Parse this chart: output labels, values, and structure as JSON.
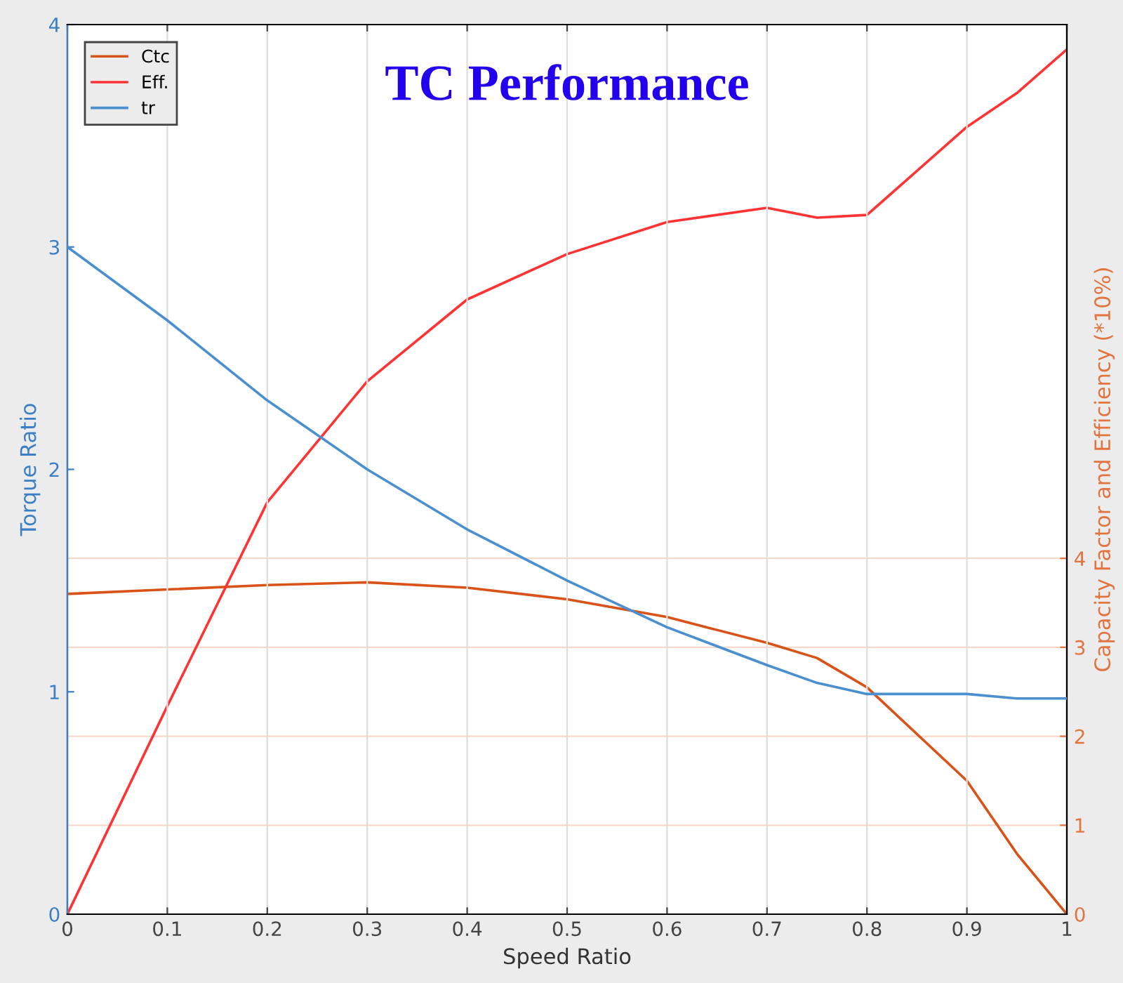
{
  "chart_data": {
    "type": "line",
    "title": "TC Performance",
    "xlabel": "Speed Ratio",
    "ylabel": "Torque Ratio",
    "y2label": "Capacity Factor and Efficiency (*10%)",
    "x": [
      0,
      0.1,
      0.2,
      0.3,
      0.4,
      0.5,
      0.6,
      0.7,
      0.75,
      0.8,
      0.9,
      0.95,
      1
    ],
    "series": [
      {
        "name": "Ctc",
        "color": "#d95319",
        "axis": "y2",
        "values": [
          3.6,
          3.65,
          3.7,
          3.73,
          3.67,
          3.54,
          3.34,
          3.05,
          2.88,
          2.55,
          1.5,
          0.68,
          0
        ]
      },
      {
        "name": "Eff.",
        "color": "#ff3333",
        "axis": "y2",
        "values": [
          0,
          2.34,
          4.63,
          5.99,
          6.91,
          7.42,
          7.78,
          7.94,
          7.83,
          7.86,
          8.85,
          9.23,
          9.72
        ]
      },
      {
        "name": "tr",
        "color": "#4a90d0",
        "values": [
          3.0,
          2.67,
          2.31,
          2.0,
          1.73,
          1.5,
          1.29,
          1.12,
          1.04,
          0.99,
          0.99,
          0.97,
          0.97
        ]
      }
    ],
    "xlim": [
      0,
      1
    ],
    "xticks": [
      0,
      0.1,
      0.2,
      0.3,
      0.4,
      0.5,
      0.6,
      0.7,
      0.8,
      0.9,
      1
    ],
    "ylim": [
      0,
      4
    ],
    "yticks": [
      0,
      1,
      2,
      3,
      4
    ],
    "y2lim": [
      0,
      10
    ],
    "y2ticks": [
      0,
      1,
      2,
      3,
      4
    ],
    "grid": true,
    "legend": "top left",
    "marker": "none",
    "line_style": "solid"
  }
}
